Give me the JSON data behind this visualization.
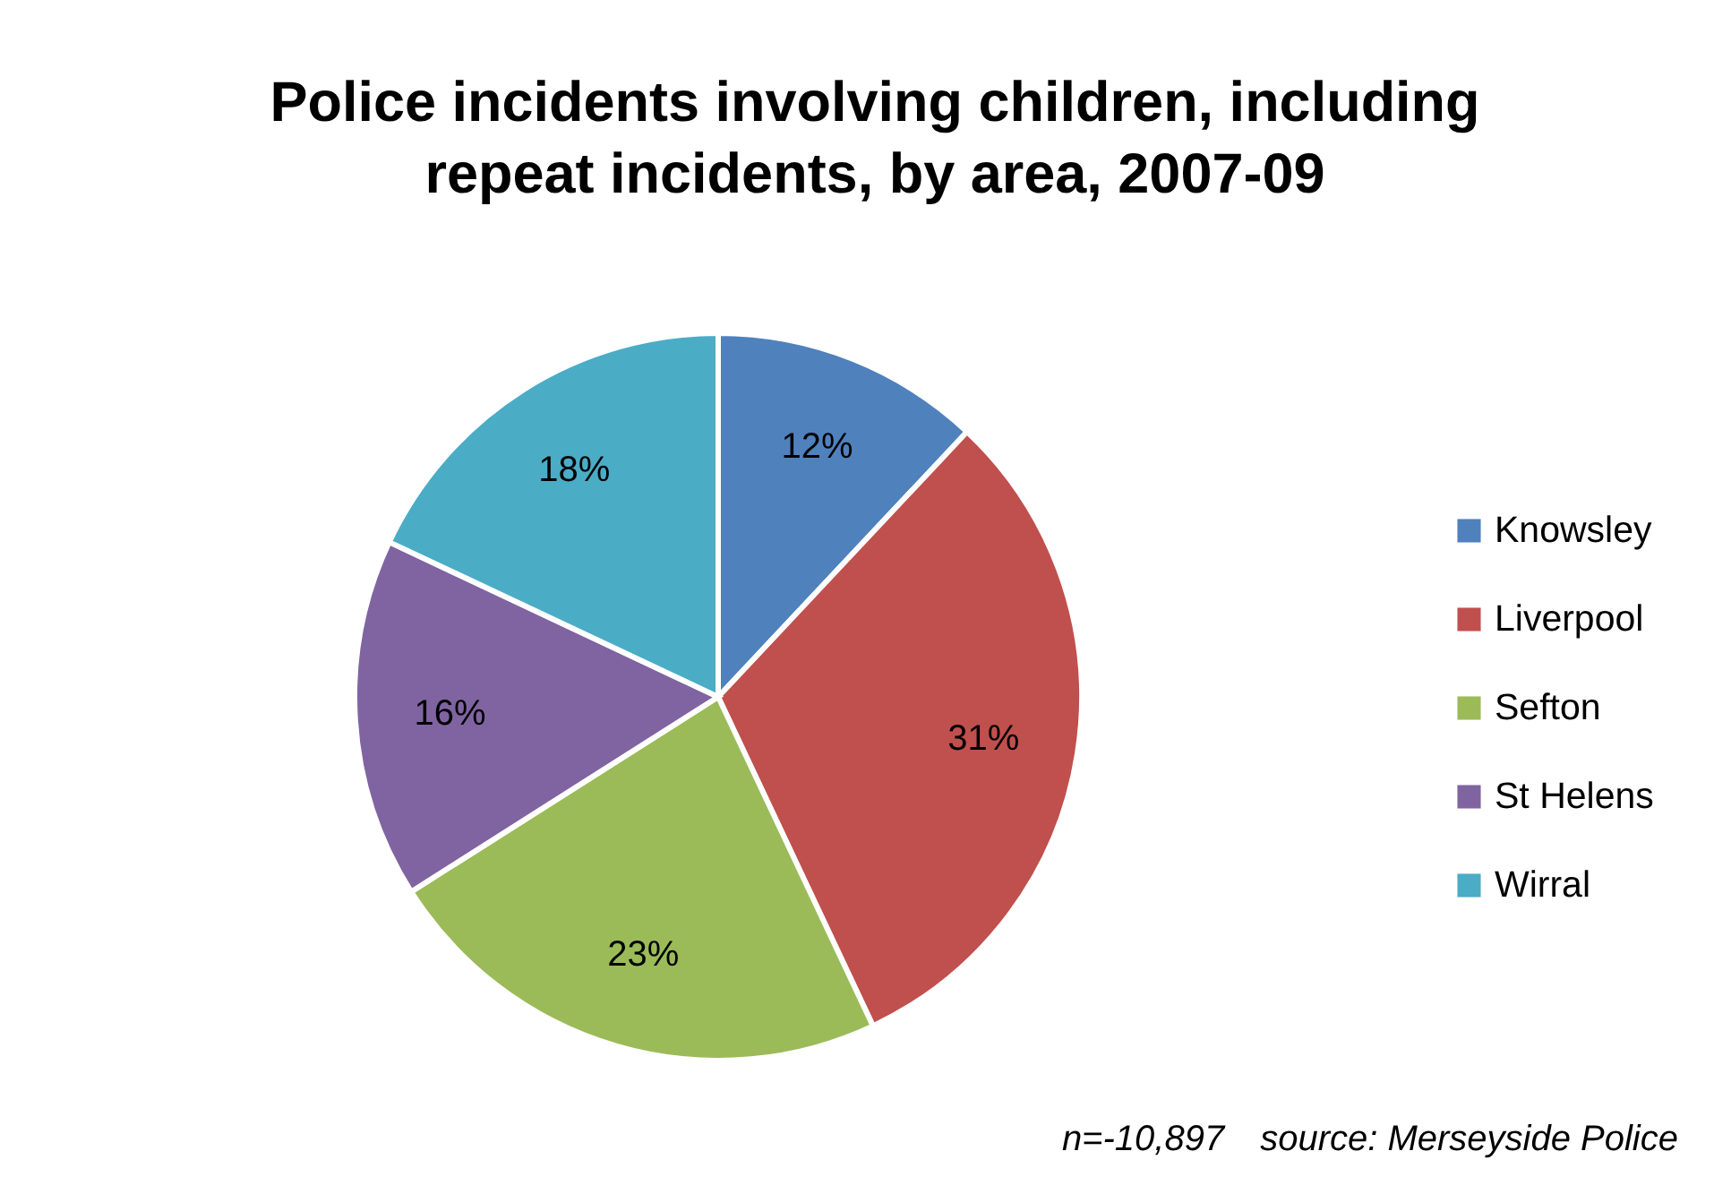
{
  "chart_data": {
    "type": "pie",
    "title": "Police incidents involving children, including repeat incidents, by area, 2007-09",
    "categories": [
      "Knowsley",
      "Liverpool",
      "Sefton",
      "St Helens",
      "Wirral"
    ],
    "values": [
      12,
      31,
      23,
      16,
      18
    ],
    "colors": [
      "#4f81bd",
      "#c0504d",
      "#9bbb59",
      "#8064a2",
      "#4bacc6"
    ],
    "value_labels": [
      "12%",
      "31%",
      "23%",
      "16%",
      "18%"
    ],
    "legend": "right",
    "annotations": [
      "n=-10,897",
      "source: Merseyside Police"
    ]
  }
}
